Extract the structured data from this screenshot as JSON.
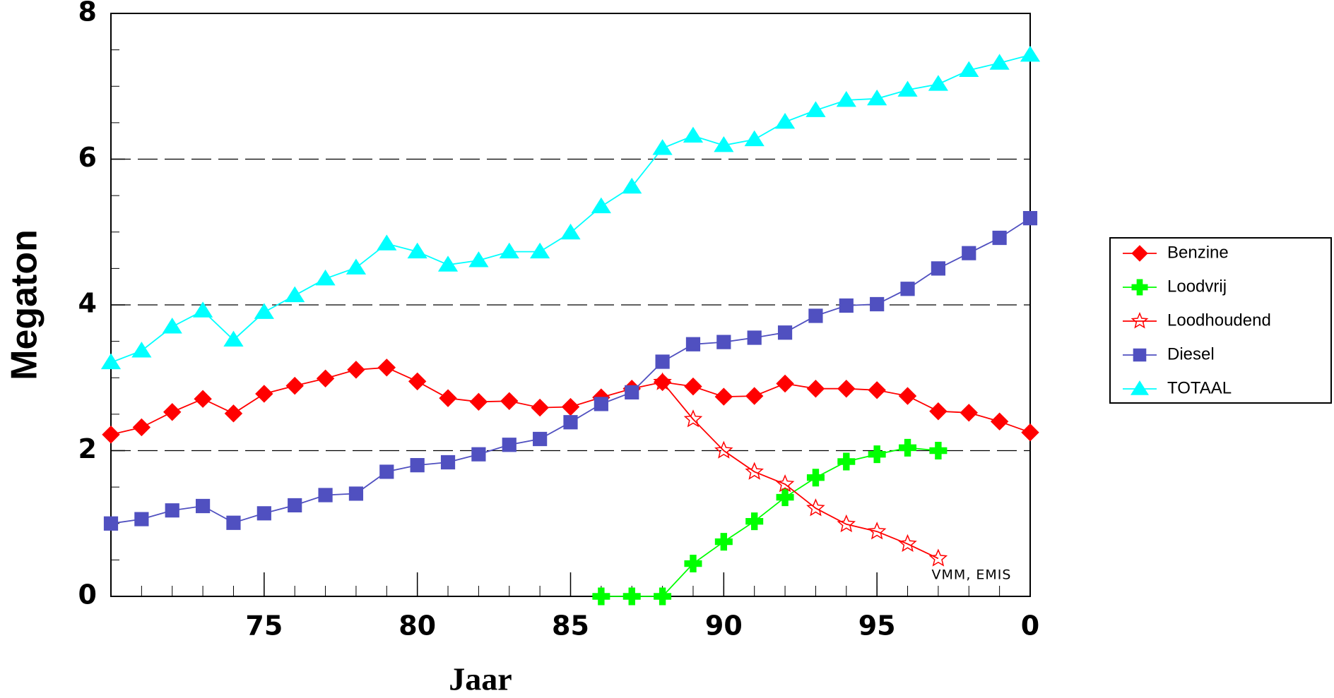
{
  "chart_data": {
    "type": "line",
    "y_label": "Megaton",
    "x_label": "Jaar",
    "annotation": "VMM,  EMIS",
    "x": [
      70,
      71,
      72,
      73,
      74,
      75,
      76,
      77,
      78,
      79,
      80,
      81,
      82,
      83,
      84,
      85,
      86,
      87,
      88,
      89,
      90,
      91,
      92,
      93,
      94,
      95,
      96,
      97,
      98,
      99,
      100
    ],
    "xlim": [
      70,
      100
    ],
    "xticks": [
      75,
      80,
      85,
      90,
      95,
      {
        "value": 100,
        "label": "0"
      }
    ],
    "ylim": [
      0,
      8
    ],
    "yticks": [
      0,
      2,
      4,
      6,
      8
    ],
    "grid": true,
    "grid_style": "dashed",
    "legend": "right",
    "series": [
      {
        "name": "Benzine",
        "color": "#ff0000",
        "marker": "diamond",
        "values": [
          2.22,
          2.32,
          2.53,
          2.71,
          2.51,
          2.78,
          2.89,
          2.99,
          3.11,
          3.14,
          2.95,
          2.72,
          2.67,
          2.68,
          2.59,
          2.6,
          2.73,
          2.85,
          2.94,
          2.88,
          2.74,
          2.75,
          2.92,
          2.85,
          2.85,
          2.83,
          2.75,
          2.54,
          2.52,
          2.4,
          2.25
        ]
      },
      {
        "name": "Loodvrij",
        "color": "#00ff00",
        "marker": "plus",
        "values": [
          null,
          null,
          null,
          null,
          null,
          null,
          null,
          null,
          null,
          null,
          null,
          null,
          null,
          null,
          null,
          null,
          0,
          0,
          0,
          0.45,
          0.75,
          1.03,
          1.36,
          1.63,
          1.85,
          1.95,
          2.04,
          2.0,
          null,
          null,
          null
        ]
      },
      {
        "name": "Loodhoudend",
        "color": "#ff0000",
        "marker": "star",
        "values": [
          null,
          null,
          null,
          null,
          null,
          null,
          null,
          null,
          null,
          null,
          null,
          null,
          null,
          null,
          null,
          null,
          null,
          null,
          2.94,
          2.43,
          2.0,
          1.71,
          1.54,
          1.21,
          0.99,
          0.89,
          0.72,
          0.52,
          null,
          null,
          null
        ]
      },
      {
        "name": "Diesel",
        "color": "#5050c0",
        "marker": "square",
        "values": [
          1.0,
          1.06,
          1.18,
          1.24,
          1.01,
          1.14,
          1.25,
          1.39,
          1.41,
          1.71,
          1.8,
          1.84,
          1.95,
          2.08,
          2.16,
          2.39,
          2.64,
          2.8,
          3.22,
          3.46,
          3.49,
          3.55,
          3.62,
          3.85,
          3.99,
          4.01,
          4.22,
          4.5,
          4.71,
          4.92,
          5.19
        ]
      },
      {
        "name": "TOTAAL",
        "color": "#00ffff",
        "marker": "triangle",
        "values": [
          3.21,
          3.37,
          3.7,
          3.92,
          3.52,
          3.9,
          4.13,
          4.36,
          4.51,
          4.84,
          4.73,
          4.55,
          4.61,
          4.73,
          4.73,
          4.99,
          5.35,
          5.62,
          6.15,
          6.32,
          6.19,
          6.27,
          6.51,
          6.67,
          6.81,
          6.83,
          6.95,
          7.03,
          7.22,
          7.32,
          7.43
        ]
      }
    ]
  }
}
